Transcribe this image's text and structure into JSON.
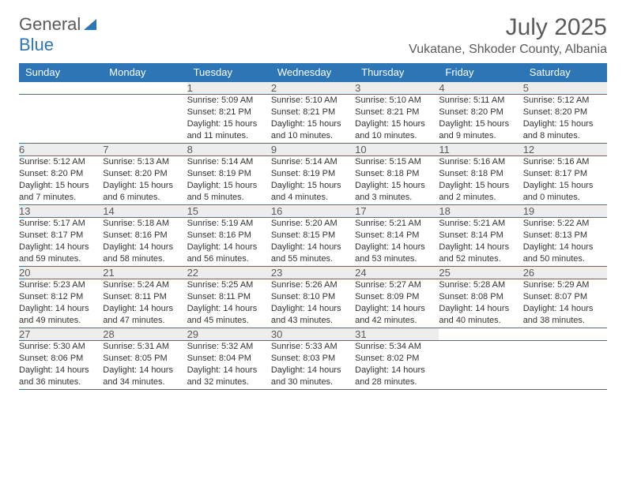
{
  "logo": {
    "word1": "General",
    "word2": "Blue"
  },
  "title": "July 2025",
  "location": "Vukatane, Shkoder County, Albania",
  "colors": {
    "header_bg": "#2e75b6",
    "header_fg": "#ffffff",
    "daynum_bg": "#ededed",
    "border": "#2e75b6",
    "text": "#333333",
    "muted": "#5a5a5a",
    "page_bg": "#ffffff"
  },
  "weekdays": [
    "Sunday",
    "Monday",
    "Tuesday",
    "Wednesday",
    "Thursday",
    "Friday",
    "Saturday"
  ],
  "weeks": [
    [
      null,
      null,
      {
        "n": "1",
        "sr": "5:09 AM",
        "ss": "8:21 PM",
        "dl": "15 hours and 11 minutes."
      },
      {
        "n": "2",
        "sr": "5:10 AM",
        "ss": "8:21 PM",
        "dl": "15 hours and 10 minutes."
      },
      {
        "n": "3",
        "sr": "5:10 AM",
        "ss": "8:21 PM",
        "dl": "15 hours and 10 minutes."
      },
      {
        "n": "4",
        "sr": "5:11 AM",
        "ss": "8:20 PM",
        "dl": "15 hours and 9 minutes."
      },
      {
        "n": "5",
        "sr": "5:12 AM",
        "ss": "8:20 PM",
        "dl": "15 hours and 8 minutes."
      }
    ],
    [
      {
        "n": "6",
        "sr": "5:12 AM",
        "ss": "8:20 PM",
        "dl": "15 hours and 7 minutes."
      },
      {
        "n": "7",
        "sr": "5:13 AM",
        "ss": "8:20 PM",
        "dl": "15 hours and 6 minutes."
      },
      {
        "n": "8",
        "sr": "5:14 AM",
        "ss": "8:19 PM",
        "dl": "15 hours and 5 minutes."
      },
      {
        "n": "9",
        "sr": "5:14 AM",
        "ss": "8:19 PM",
        "dl": "15 hours and 4 minutes."
      },
      {
        "n": "10",
        "sr": "5:15 AM",
        "ss": "8:18 PM",
        "dl": "15 hours and 3 minutes."
      },
      {
        "n": "11",
        "sr": "5:16 AM",
        "ss": "8:18 PM",
        "dl": "15 hours and 2 minutes."
      },
      {
        "n": "12",
        "sr": "5:16 AM",
        "ss": "8:17 PM",
        "dl": "15 hours and 0 minutes."
      }
    ],
    [
      {
        "n": "13",
        "sr": "5:17 AM",
        "ss": "8:17 PM",
        "dl": "14 hours and 59 minutes."
      },
      {
        "n": "14",
        "sr": "5:18 AM",
        "ss": "8:16 PM",
        "dl": "14 hours and 58 minutes."
      },
      {
        "n": "15",
        "sr": "5:19 AM",
        "ss": "8:16 PM",
        "dl": "14 hours and 56 minutes."
      },
      {
        "n": "16",
        "sr": "5:20 AM",
        "ss": "8:15 PM",
        "dl": "14 hours and 55 minutes."
      },
      {
        "n": "17",
        "sr": "5:21 AM",
        "ss": "8:14 PM",
        "dl": "14 hours and 53 minutes."
      },
      {
        "n": "18",
        "sr": "5:21 AM",
        "ss": "8:14 PM",
        "dl": "14 hours and 52 minutes."
      },
      {
        "n": "19",
        "sr": "5:22 AM",
        "ss": "8:13 PM",
        "dl": "14 hours and 50 minutes."
      }
    ],
    [
      {
        "n": "20",
        "sr": "5:23 AM",
        "ss": "8:12 PM",
        "dl": "14 hours and 49 minutes."
      },
      {
        "n": "21",
        "sr": "5:24 AM",
        "ss": "8:11 PM",
        "dl": "14 hours and 47 minutes."
      },
      {
        "n": "22",
        "sr": "5:25 AM",
        "ss": "8:11 PM",
        "dl": "14 hours and 45 minutes."
      },
      {
        "n": "23",
        "sr": "5:26 AM",
        "ss": "8:10 PM",
        "dl": "14 hours and 43 minutes."
      },
      {
        "n": "24",
        "sr": "5:27 AM",
        "ss": "8:09 PM",
        "dl": "14 hours and 42 minutes."
      },
      {
        "n": "25",
        "sr": "5:28 AM",
        "ss": "8:08 PM",
        "dl": "14 hours and 40 minutes."
      },
      {
        "n": "26",
        "sr": "5:29 AM",
        "ss": "8:07 PM",
        "dl": "14 hours and 38 minutes."
      }
    ],
    [
      {
        "n": "27",
        "sr": "5:30 AM",
        "ss": "8:06 PM",
        "dl": "14 hours and 36 minutes."
      },
      {
        "n": "28",
        "sr": "5:31 AM",
        "ss": "8:05 PM",
        "dl": "14 hours and 34 minutes."
      },
      {
        "n": "29",
        "sr": "5:32 AM",
        "ss": "8:04 PM",
        "dl": "14 hours and 32 minutes."
      },
      {
        "n": "30",
        "sr": "5:33 AM",
        "ss": "8:03 PM",
        "dl": "14 hours and 30 minutes."
      },
      {
        "n": "31",
        "sr": "5:34 AM",
        "ss": "8:02 PM",
        "dl": "14 hours and 28 minutes."
      },
      null,
      null
    ]
  ],
  "labels": {
    "sunrise": "Sunrise:",
    "sunset": "Sunset:",
    "daylight": "Daylight:"
  }
}
